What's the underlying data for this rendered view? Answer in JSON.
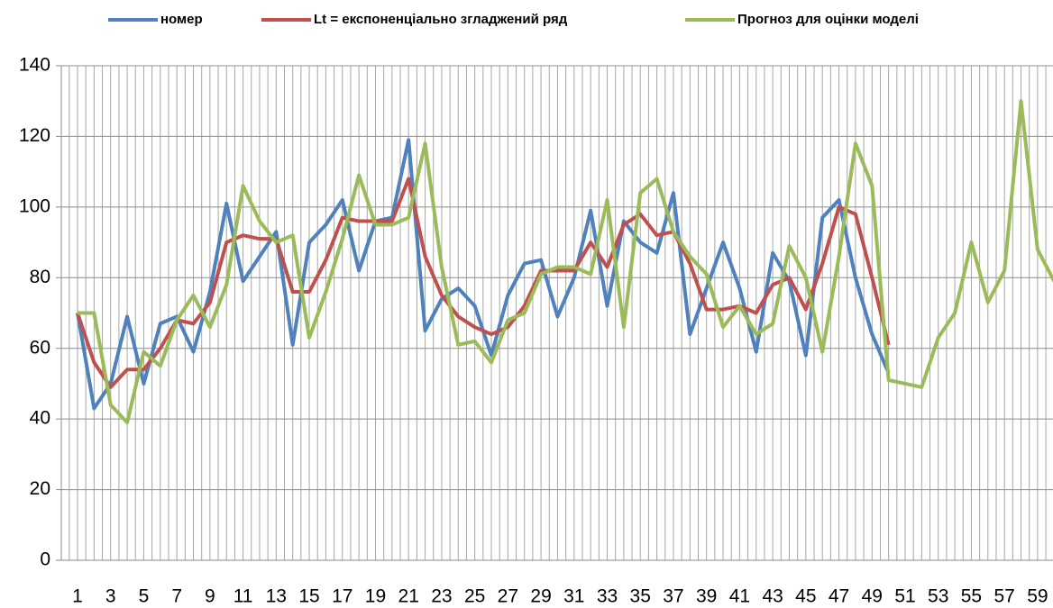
{
  "chart_data": {
    "type": "line",
    "categories": [
      1,
      null,
      3,
      null,
      5,
      null,
      7,
      null,
      9,
      null,
      11,
      null,
      13,
      null,
      15,
      null,
      17,
      null,
      19,
      null,
      21,
      null,
      23,
      null,
      25,
      null,
      27,
      null,
      29,
      null,
      31,
      null,
      33,
      null,
      35,
      null,
      37,
      null,
      39,
      null,
      41,
      null,
      43,
      null,
      45,
      null,
      47,
      null,
      49,
      null,
      51,
      null,
      53,
      null,
      55,
      null,
      57,
      null,
      59,
      null
    ],
    "series": [
      {
        "name": "номер",
        "color": "#4f81bd",
        "values": [
          70,
          43,
          50,
          69,
          50,
          67,
          69,
          59,
          76,
          101,
          79,
          86,
          93,
          61,
          90,
          95,
          102,
          82,
          96,
          97,
          119,
          65,
          74,
          77,
          72,
          58,
          75,
          84,
          85,
          69,
          80,
          99,
          72,
          96,
          90,
          87,
          104,
          64,
          77,
          90,
          77,
          59,
          87,
          79,
          58,
          97,
          102,
          80,
          64,
          53,
          null,
          null,
          null,
          null,
          null,
          null,
          null,
          null,
          null,
          null
        ]
      },
      {
        "name": "Lt = експоненціально згладжений ряд",
        "color": "#c0504d",
        "values": [
          70,
          56,
          49,
          54,
          54,
          60,
          68,
          67,
          73,
          90,
          92,
          91,
          91,
          76,
          76,
          85,
          97,
          96,
          96,
          96,
          108,
          86,
          75,
          69,
          66,
          64,
          66,
          72,
          82,
          82,
          82,
          90,
          83,
          95,
          98,
          92,
          93,
          84,
          71,
          71,
          72,
          70,
          78,
          80,
          71,
          84,
          100,
          98,
          80,
          61,
          null,
          null,
          null,
          null,
          null,
          null,
          null,
          null,
          null,
          null
        ]
      },
      {
        "name": "Прогноз для оцінки моделі",
        "color": "#9bbb59",
        "values": [
          70,
          70,
          44,
          39,
          59,
          55,
          68,
          75,
          66,
          78,
          106,
          96,
          90,
          92,
          63,
          76,
          91,
          109,
          95,
          95,
          97,
          118,
          83,
          61,
          62,
          56,
          68,
          70,
          81,
          83,
          83,
          81,
          102,
          66,
          104,
          108,
          93,
          86,
          81,
          66,
          72,
          64,
          67,
          89,
          80,
          59,
          86,
          118,
          106,
          51,
          50,
          49,
          63,
          70,
          90,
          73,
          82,
          130,
          88,
          79
        ]
      }
    ],
    "ylim": [
      0,
      140
    ],
    "yticks": [
      0,
      20,
      40,
      60,
      80,
      100,
      120,
      140
    ],
    "grid": true,
    "legend": "top"
  }
}
